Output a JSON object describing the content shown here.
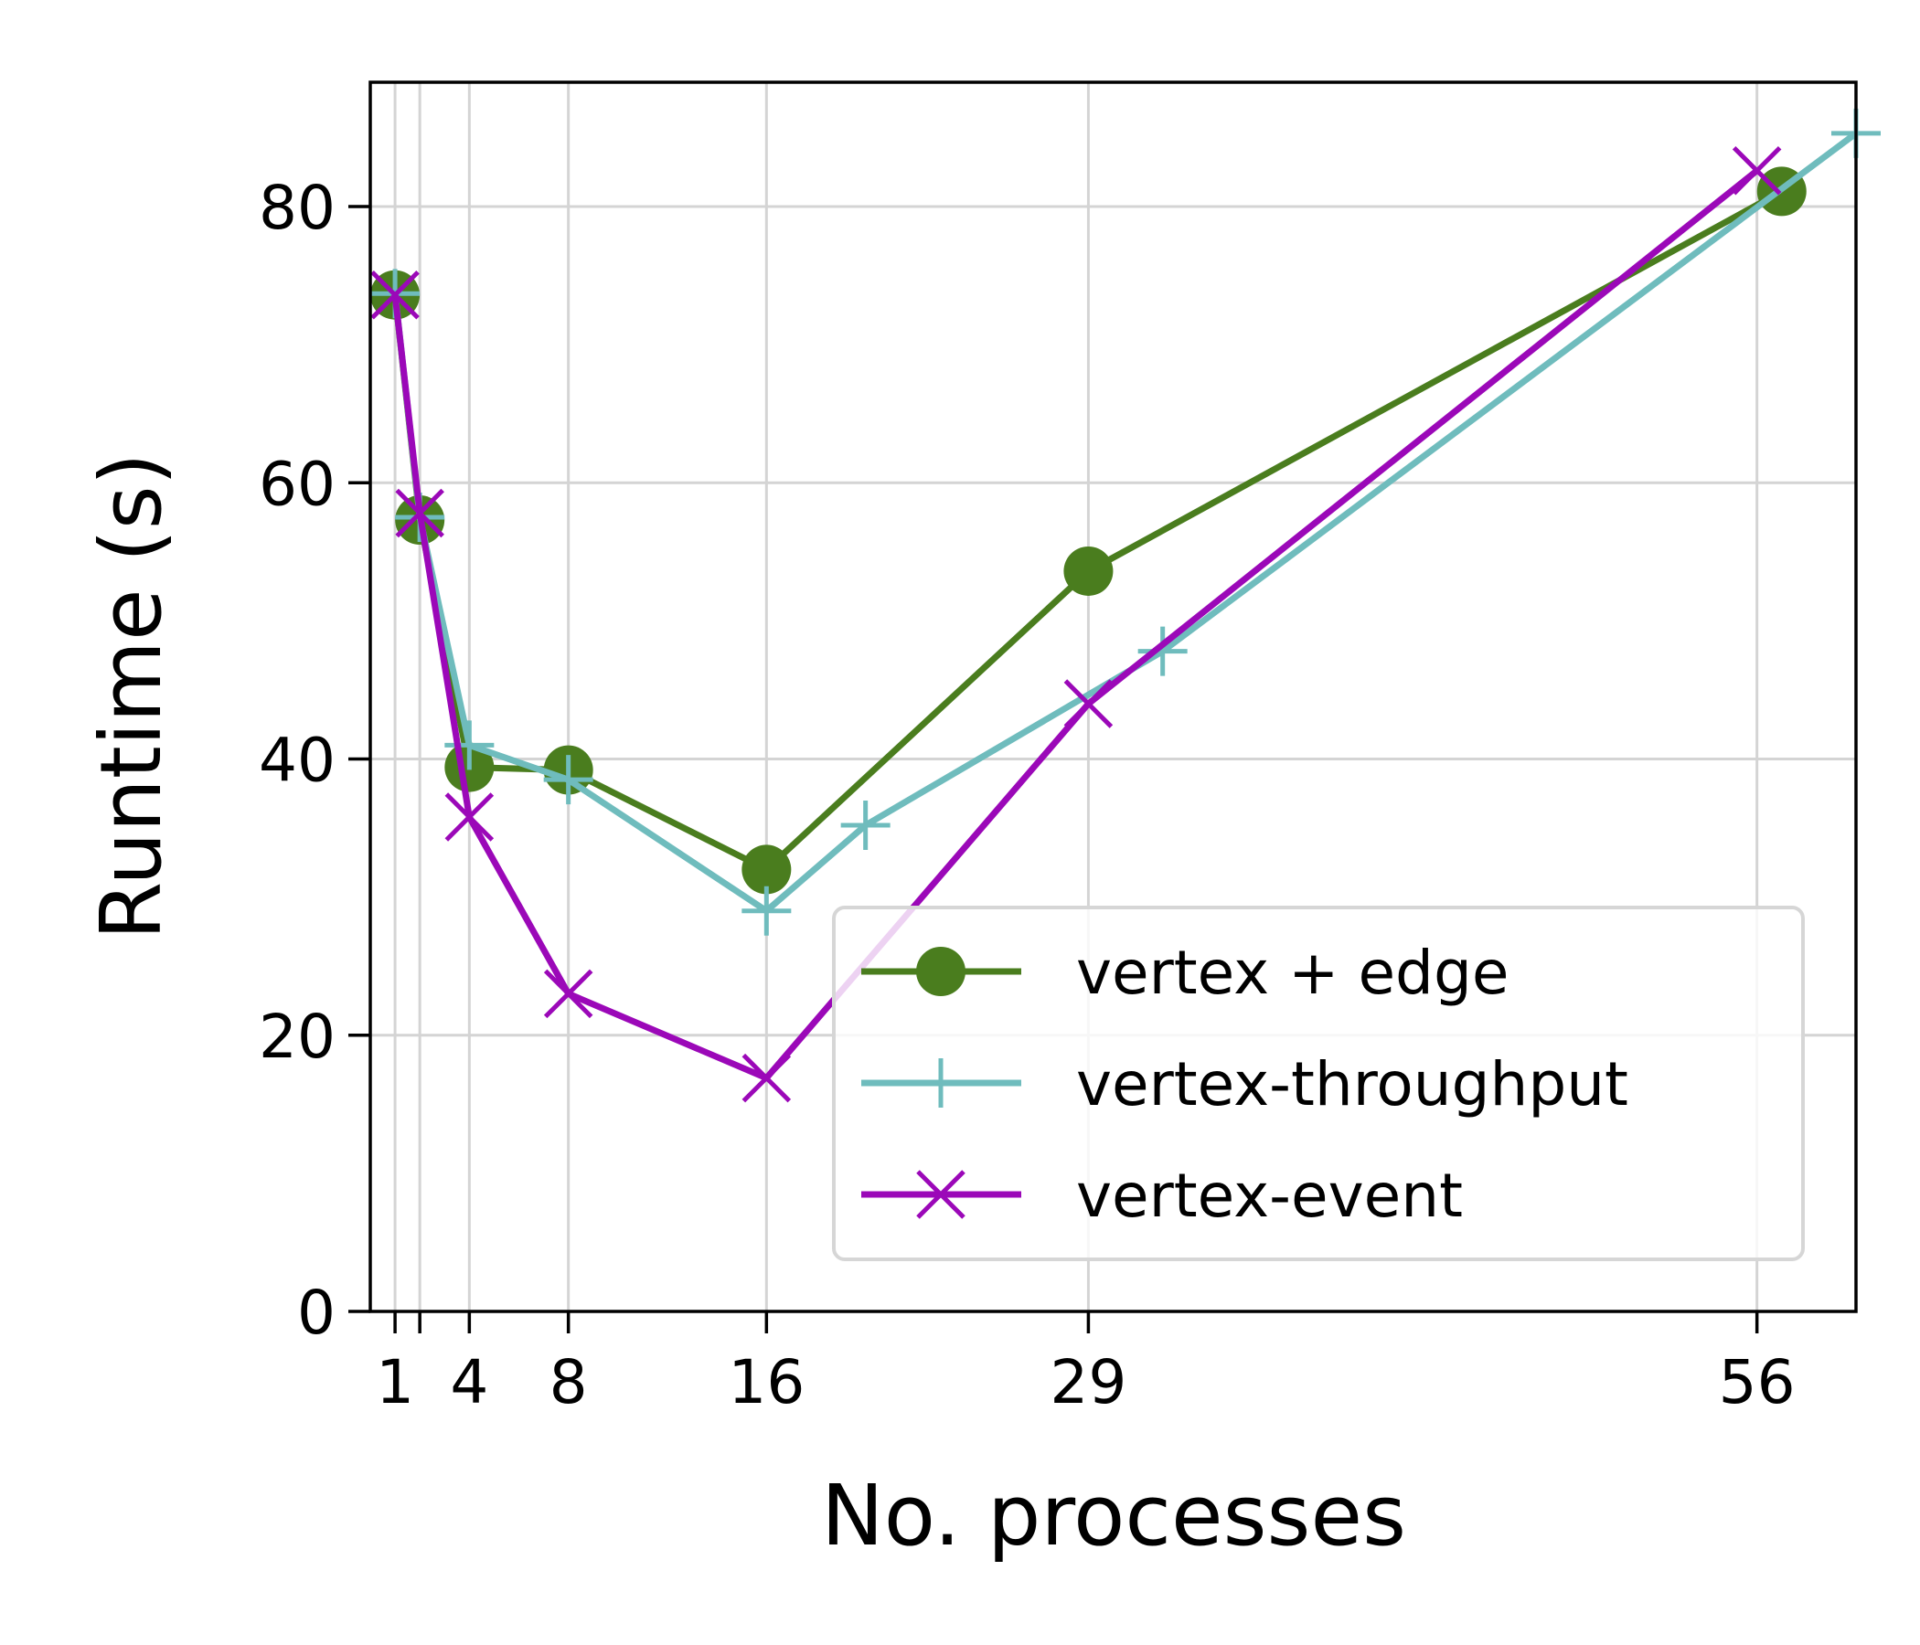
{
  "chart_data": {
    "type": "line",
    "title": "",
    "xlabel": "No. processes",
    "ylabel": "Runtime (s)",
    "xlim": [
      0,
      60
    ],
    "ylim": [
      0,
      89
    ],
    "xticks": [
      1,
      2,
      4,
      8,
      16,
      29,
      56
    ],
    "xtick_labels": [
      "1",
      "",
      "4",
      "8",
      "16",
      "29",
      "56"
    ],
    "yticks": [
      0,
      20,
      40,
      60,
      80
    ],
    "ytick_labels": [
      "0",
      "20",
      "40",
      "60",
      "80"
    ],
    "grid": true,
    "legend_position": "lower-right",
    "series": [
      {
        "name": "vertex + edge",
        "color": "#4a7d1e",
        "marker": "circle",
        "x": [
          1,
          2,
          4,
          8,
          16,
          29,
          57
        ],
        "y": [
          73.6,
          57.3,
          39.4,
          39.2,
          32.0,
          53.6,
          81.1
        ]
      },
      {
        "name": "vertex-throughput",
        "color": "#6fbcbd",
        "marker": "plus",
        "x": [
          1,
          2,
          4,
          8,
          16,
          20,
          32,
          60
        ],
        "y": [
          73.7,
          57.5,
          41.0,
          38.5,
          29.0,
          35.2,
          47.8,
          85.3
        ]
      },
      {
        "name": "vertex-event",
        "color": "#9b08b8",
        "marker": "x",
        "x": [
          1,
          2,
          4,
          8,
          16,
          29,
          56
        ],
        "y": [
          73.6,
          57.8,
          35.8,
          23.0,
          16.9,
          44.0,
          82.6
        ]
      }
    ]
  }
}
